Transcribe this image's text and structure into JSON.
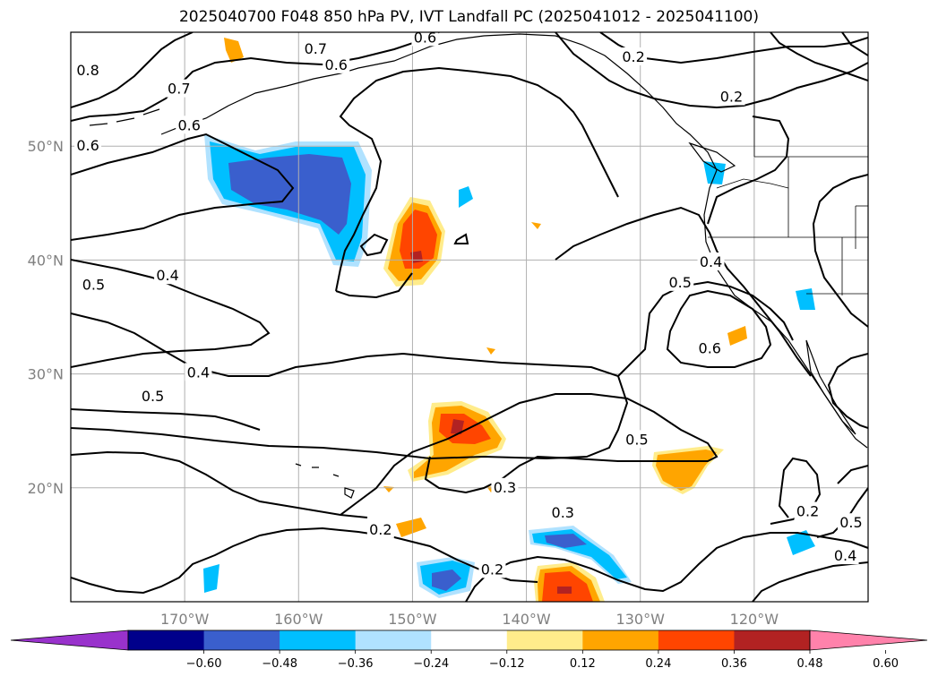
{
  "title": "2025040700 F048 850 hPa PV, IVT Landfall PC (2025041012 - 2025041100)",
  "map": {
    "lon_range": [
      -180,
      -110
    ],
    "lat_range": [
      10,
      60
    ],
    "lon_ticks": [
      {
        "value": -170,
        "label": "170°W"
      },
      {
        "value": -160,
        "label": "160°W"
      },
      {
        "value": -150,
        "label": "150°W"
      },
      {
        "value": -140,
        "label": "140°W"
      },
      {
        "value": -130,
        "label": "130°W"
      },
      {
        "value": -120,
        "label": "120°W"
      }
    ],
    "lat_ticks": [
      {
        "value": 20,
        "label": "20°N"
      },
      {
        "value": 30,
        "label": "30°N"
      },
      {
        "value": 40,
        "label": "40°N"
      },
      {
        "value": 50,
        "label": "50°N"
      }
    ],
    "grid": true,
    "contour_labels": [
      {
        "text": "0.6",
        "lon": -156.7,
        "lat": 57.1
      },
      {
        "text": "0.7",
        "lon": -170.5,
        "lat": 55.0
      },
      {
        "text": "0.8",
        "lon": -178.5,
        "lat": 56.6
      },
      {
        "text": "0.6",
        "lon": -178.5,
        "lat": 50.0
      },
      {
        "text": "0.6",
        "lon": -169.6,
        "lat": 51.8
      },
      {
        "text": "0.7",
        "lon": -158.5,
        "lat": 58.5
      },
      {
        "text": "0.6",
        "lon": -148.9,
        "lat": 59.5
      },
      {
        "text": "0.2",
        "lon": -130.6,
        "lat": 57.8
      },
      {
        "text": "0.2",
        "lon": -122.0,
        "lat": 54.3
      },
      {
        "text": "0.5",
        "lon": -178.0,
        "lat": 37.8
      },
      {
        "text": "0.4",
        "lon": -171.5,
        "lat": 38.6
      },
      {
        "text": "0.4",
        "lon": -168.8,
        "lat": 30.1
      },
      {
        "text": "0.5",
        "lon": -172.8,
        "lat": 28.0
      },
      {
        "text": "0.4",
        "lon": -123.8,
        "lat": 39.8
      },
      {
        "text": "0.5",
        "lon": -126.5,
        "lat": 38.0
      },
      {
        "text": "0.6",
        "lon": -123.9,
        "lat": 32.2
      },
      {
        "text": "0.5",
        "lon": -130.3,
        "lat": 24.2
      },
      {
        "text": "0.3",
        "lon": -141.9,
        "lat": 20.0
      },
      {
        "text": "0.3",
        "lon": -136.8,
        "lat": 17.8
      },
      {
        "text": "0.2",
        "lon": -143.0,
        "lat": 12.8
      },
      {
        "text": "0.2",
        "lon": -152.8,
        "lat": 16.3
      },
      {
        "text": "0.2",
        "lon": -115.3,
        "lat": 17.9
      },
      {
        "text": "0.5",
        "lon": -111.5,
        "lat": 16.9
      },
      {
        "text": "0.4",
        "lon": -112.0,
        "lat": 14.0
      }
    ]
  },
  "colorbar": {
    "colors": [
      "#9932cc",
      "#00008b",
      "#3a5fcd",
      "#00bfff",
      "#b0e2ff",
      "#ffffff",
      "#ffec8b",
      "#ffa500",
      "#ff4500",
      "#b22222",
      "#ff82ab"
    ],
    "tick_labels": [
      "−0.60",
      "−0.48",
      "−0.36",
      "−0.24",
      "−0.12",
      "0.12",
      "0.24",
      "0.36",
      "0.48",
      "0.60"
    ]
  }
}
